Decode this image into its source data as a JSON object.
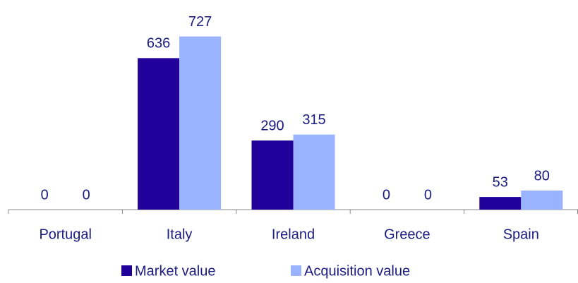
{
  "chart_data": {
    "type": "bar",
    "categories": [
      "Portugal",
      "Italy",
      "Ireland",
      "Greece",
      "Spain"
    ],
    "series": [
      {
        "name": "Market value",
        "color": "#22009a",
        "values": [
          0,
          636,
          290,
          0,
          53
        ]
      },
      {
        "name": "Acquisition value",
        "color": "#99b3ff",
        "values": [
          0,
          727,
          315,
          0,
          80
        ]
      }
    ],
    "ylim": [
      0,
      800
    ],
    "grid": false,
    "legend": "bottom"
  }
}
